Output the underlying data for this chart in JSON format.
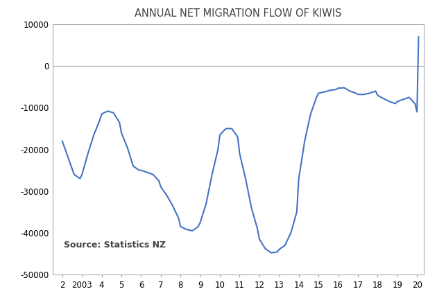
{
  "title": "ANNUAL NET MIGRATION FLOW OF KIWIS",
  "line_color": "#4472C4",
  "line_width": 1.5,
  "background_color": "#ffffff",
  "ylim": [
    -50000,
    10000
  ],
  "yticks": [
    -50000,
    -40000,
    -30000,
    -20000,
    -10000,
    0,
    10000
  ],
  "source_text": "Source: Statistics NZ",
  "x_labels": [
    "2",
    "2003",
    "4",
    "5",
    "6",
    "7",
    "8",
    "9",
    "10",
    "11",
    "12",
    "13",
    "14",
    "15",
    "16",
    "17",
    "18",
    "19",
    "20"
  ],
  "x_positions": [
    2002,
    2003,
    2004,
    2005,
    2006,
    2007,
    2008,
    2009,
    2010,
    2011,
    2012,
    2013,
    2014,
    2015,
    2016,
    2017,
    2018,
    2019,
    2020
  ],
  "data_x": [
    2002.0,
    2002.3,
    2002.6,
    2002.9,
    2003.0,
    2003.3,
    2003.6,
    2003.9,
    2004.0,
    2004.3,
    2004.6,
    2004.9,
    2005.0,
    2005.3,
    2005.6,
    2005.9,
    2006.0,
    2006.3,
    2006.6,
    2006.9,
    2007.0,
    2007.3,
    2007.6,
    2007.9,
    2008.0,
    2008.3,
    2008.6,
    2008.9,
    2009.0,
    2009.3,
    2009.6,
    2009.9,
    2010.0,
    2010.3,
    2010.6,
    2010.9,
    2011.0,
    2011.3,
    2011.6,
    2011.9,
    2012.0,
    2012.3,
    2012.6,
    2012.9,
    2013.0,
    2013.3,
    2013.6,
    2013.9,
    2014.0,
    2014.3,
    2014.6,
    2014.9,
    2015.0,
    2015.3,
    2015.6,
    2015.9,
    2016.0,
    2016.3,
    2016.6,
    2016.9,
    2017.0,
    2017.3,
    2017.6,
    2017.9,
    2018.0,
    2018.3,
    2018.6,
    2018.9,
    2019.0,
    2019.3,
    2019.6,
    2019.9,
    2020.0,
    2020.08
  ],
  "data_y": [
    -18000,
    -22000,
    -26000,
    -27000,
    -26000,
    -21000,
    -16500,
    -13000,
    -11500,
    -10800,
    -11200,
    -13500,
    -16000,
    -19500,
    -24000,
    -25000,
    -25000,
    -25500,
    -26000,
    -27500,
    -29000,
    -31000,
    -33500,
    -36500,
    -38500,
    -39200,
    -39500,
    -38500,
    -37500,
    -33000,
    -26000,
    -20000,
    -16500,
    -15000,
    -15000,
    -17000,
    -21000,
    -27000,
    -34000,
    -39000,
    -41500,
    -43800,
    -44800,
    -44600,
    -44000,
    -43000,
    -40000,
    -35000,
    -27000,
    -18000,
    -11500,
    -7500,
    -6500,
    -6200,
    -5800,
    -5600,
    -5300,
    -5200,
    -6000,
    -6500,
    -6800,
    -6800,
    -6500,
    -6000,
    -7000,
    -7800,
    -8500,
    -9000,
    -8500,
    -8000,
    -7500,
    -9000,
    -11000,
    7000
  ]
}
